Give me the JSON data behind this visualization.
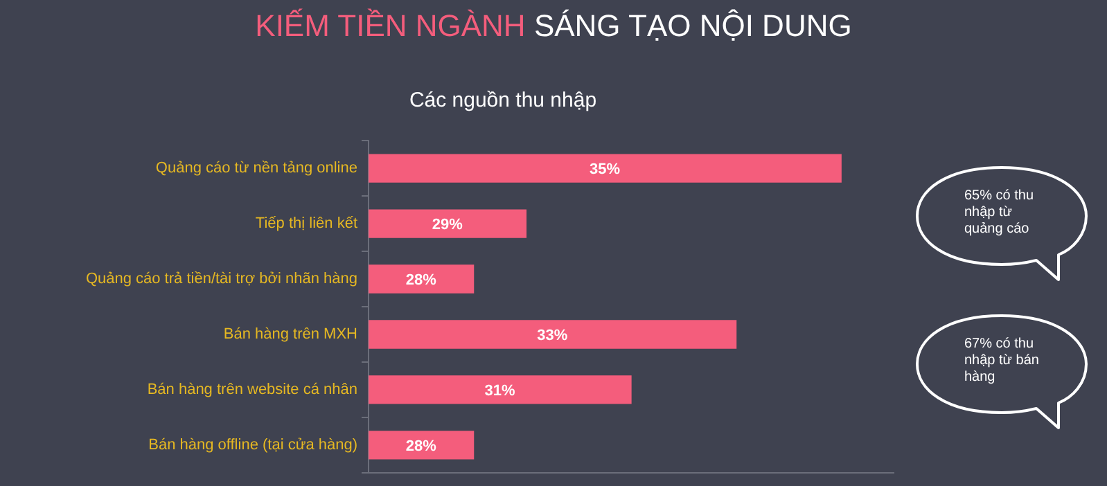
{
  "chart_data": {
    "type": "bar",
    "orientation": "horizontal",
    "title": "KIẾM TIỀN NGÀNH SÁNG TẠO NỘI DUNG",
    "subtitle": "Các nguồn thu nhập",
    "categories": [
      "Quảng cáo từ nền tảng online",
      "Tiếp thị liên kết",
      "Quảng cáo trả tiền/tài trợ bởi nhãn hàng",
      "Bán hàng trên MXH",
      "Bán hàng trên website cá nhân",
      "Bán hàng offline (tại cửa hàng)"
    ],
    "values": [
      35,
      29,
      28,
      33,
      31,
      28
    ],
    "color": "#f45d7c",
    "value_labels": [
      "35%",
      "29%",
      "28%",
      "33%",
      "31%",
      "28%"
    ],
    "xlim": [
      26,
      36
    ],
    "tick_labels": "y",
    "grid": false,
    "legend": false,
    "annotations": [
      "65% có thu nhập từ quảng cáo",
      "67% có thu nhập từ bán hàng"
    ]
  }
}
